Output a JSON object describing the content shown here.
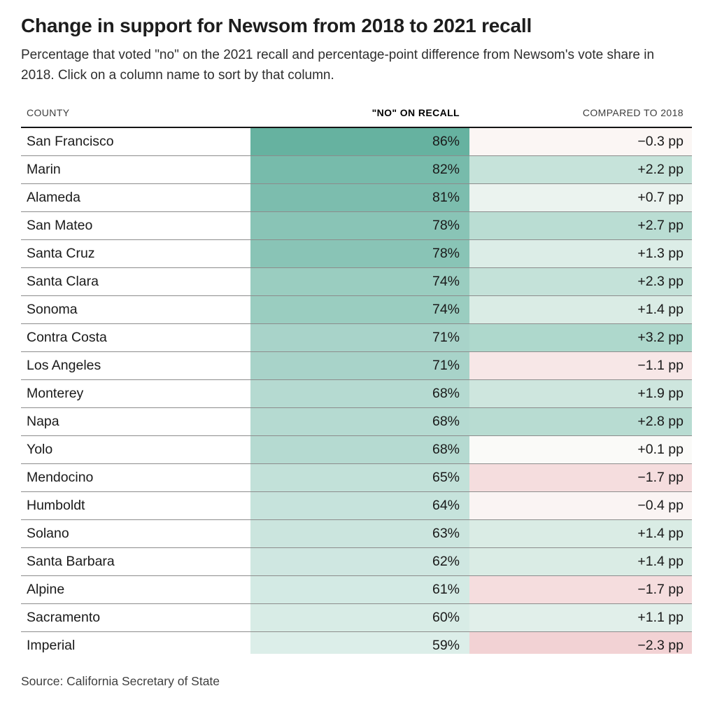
{
  "header": {
    "title": "Change in support for Newsom from 2018 to 2021 recall",
    "subtitle": "Percentage that voted \"no\" on the 2021 recall and percentage-point difference from Newsom's vote share in 2018. Click on a column name to sort by that column."
  },
  "table": {
    "columns": [
      {
        "label": "COUNTY",
        "sorted": false
      },
      {
        "label": "\"NO\" ON RECALL",
        "sorted": true
      },
      {
        "label": "COMPARED TO 2018",
        "sorted": false
      }
    ],
    "rows": [
      {
        "county": "San Francisco",
        "no_pct": "86%",
        "diff": "−0.3 pp",
        "no_color": "#66b2a0",
        "diff_color": "#fbf6f4"
      },
      {
        "county": "Marin",
        "no_pct": "82%",
        "diff": "+2.2 pp",
        "no_color": "#77bbab",
        "diff_color": "#c6e3da"
      },
      {
        "county": "Alameda",
        "no_pct": "81%",
        "diff": "+0.7 pp",
        "no_color": "#7cbdae",
        "diff_color": "#ebf3ef"
      },
      {
        "county": "San Mateo",
        "no_pct": "78%",
        "diff": "+2.7 pp",
        "no_color": "#89c4b6",
        "diff_color": "#baddd3"
      },
      {
        "county": "Santa Cruz",
        "no_pct": "78%",
        "diff": "+1.3 pp",
        "no_color": "#89c4b6",
        "diff_color": "#dcede7"
      },
      {
        "county": "Santa Clara",
        "no_pct": "74%",
        "diff": "+2.3 pp",
        "no_color": "#9acdc0",
        "diff_color": "#c4e2d9"
      },
      {
        "county": "Sonoma",
        "no_pct": "74%",
        "diff": "+1.4 pp",
        "no_color": "#9acdc0",
        "diff_color": "#daece5"
      },
      {
        "county": "Contra Costa",
        "no_pct": "71%",
        "diff": "+3.2 pp",
        "no_color": "#a8d3c9",
        "diff_color": "#aed8cc"
      },
      {
        "county": "Los Angeles",
        "no_pct": "71%",
        "diff": "−1.1 pp",
        "no_color": "#a8d3c9",
        "diff_color": "#f7e7e7"
      },
      {
        "county": "Monterey",
        "no_pct": "68%",
        "diff": "+1.9 pp",
        "no_color": "#b5dad1",
        "diff_color": "#cee6de"
      },
      {
        "county": "Napa",
        "no_pct": "68%",
        "diff": "+2.8 pp",
        "no_color": "#b5dad1",
        "diff_color": "#b8dcd2"
      },
      {
        "county": "Yolo",
        "no_pct": "68%",
        "diff": "+0.1 pp",
        "no_color": "#b5dad1",
        "diff_color": "#fafaf8"
      },
      {
        "county": "Mendocino",
        "no_pct": "65%",
        "diff": "−1.7 pp",
        "no_color": "#c2e1d9",
        "diff_color": "#f5ddde"
      },
      {
        "county": "Humboldt",
        "no_pct": "64%",
        "diff": "−0.4 pp",
        "no_color": "#c6e3dc",
        "diff_color": "#faf4f3"
      },
      {
        "county": "Solano",
        "no_pct": "63%",
        "diff": "+1.4 pp",
        "no_color": "#cbe5de",
        "diff_color": "#daece5"
      },
      {
        "county": "Santa Barbara",
        "no_pct": "62%",
        "diff": "+1.4 pp",
        "no_color": "#cfe7e1",
        "diff_color": "#daece5"
      },
      {
        "county": "Alpine",
        "no_pct": "61%",
        "diff": "−1.7 pp",
        "no_color": "#d3eae4",
        "diff_color": "#f5ddde"
      },
      {
        "county": "Sacramento",
        "no_pct": "60%",
        "diff": "+1.1 pp",
        "no_color": "#d8ece6",
        "diff_color": "#e1efea"
      },
      {
        "county": "Imperial",
        "no_pct": "59%",
        "diff": "−2.3 pp",
        "no_color": "#dceee9",
        "diff_color": "#f2d2d4"
      }
    ]
  },
  "source": "Source: California Secretary of State",
  "colors": {
    "no_scale_min": "#dceee9",
    "no_scale_max": "#66b2a0",
    "diff_negative_max": "#f2d2d4",
    "diff_neutral": "#fcfbf9",
    "diff_positive_max": "#aed8cc",
    "table_top_border": "#141414",
    "row_divider": "#8c8c8c",
    "text": "#1a1a1a"
  },
  "chart_data": {
    "type": "table",
    "title": "Change in support for Newsom from 2018 to 2021 recall",
    "subtitle": "Percentage that voted \"no\" on the 2021 recall and percentage-point difference from Newsom's vote share in 2018. Click on a column name to sort by that column.",
    "columns": [
      "County",
      "\"No\" on recall (%)",
      "Compared to 2018 (pp)"
    ],
    "rows": [
      [
        "San Francisco",
        86,
        -0.3
      ],
      [
        "Marin",
        82,
        2.2
      ],
      [
        "Alameda",
        81,
        0.7
      ],
      [
        "San Mateo",
        78,
        2.7
      ],
      [
        "Santa Cruz",
        78,
        1.3
      ],
      [
        "Santa Clara",
        74,
        2.3
      ],
      [
        "Sonoma",
        74,
        1.4
      ],
      [
        "Contra Costa",
        71,
        3.2
      ],
      [
        "Los Angeles",
        71,
        -1.1
      ],
      [
        "Monterey",
        68,
        1.9
      ],
      [
        "Napa",
        68,
        2.8
      ],
      [
        "Yolo",
        68,
        0.1
      ],
      [
        "Mendocino",
        65,
        -1.7
      ],
      [
        "Humboldt",
        64,
        -0.4
      ],
      [
        "Solano",
        63,
        1.4
      ],
      [
        "Santa Barbara",
        62,
        1.4
      ],
      [
        "Alpine",
        61,
        -1.7
      ],
      [
        "Sacramento",
        60,
        1.1
      ],
      [
        "Imperial",
        59,
        -2.3
      ]
    ],
    "sorted_by": "\"No\" on recall",
    "sort_order": "descending",
    "source": "Source: California Secretary of State"
  }
}
